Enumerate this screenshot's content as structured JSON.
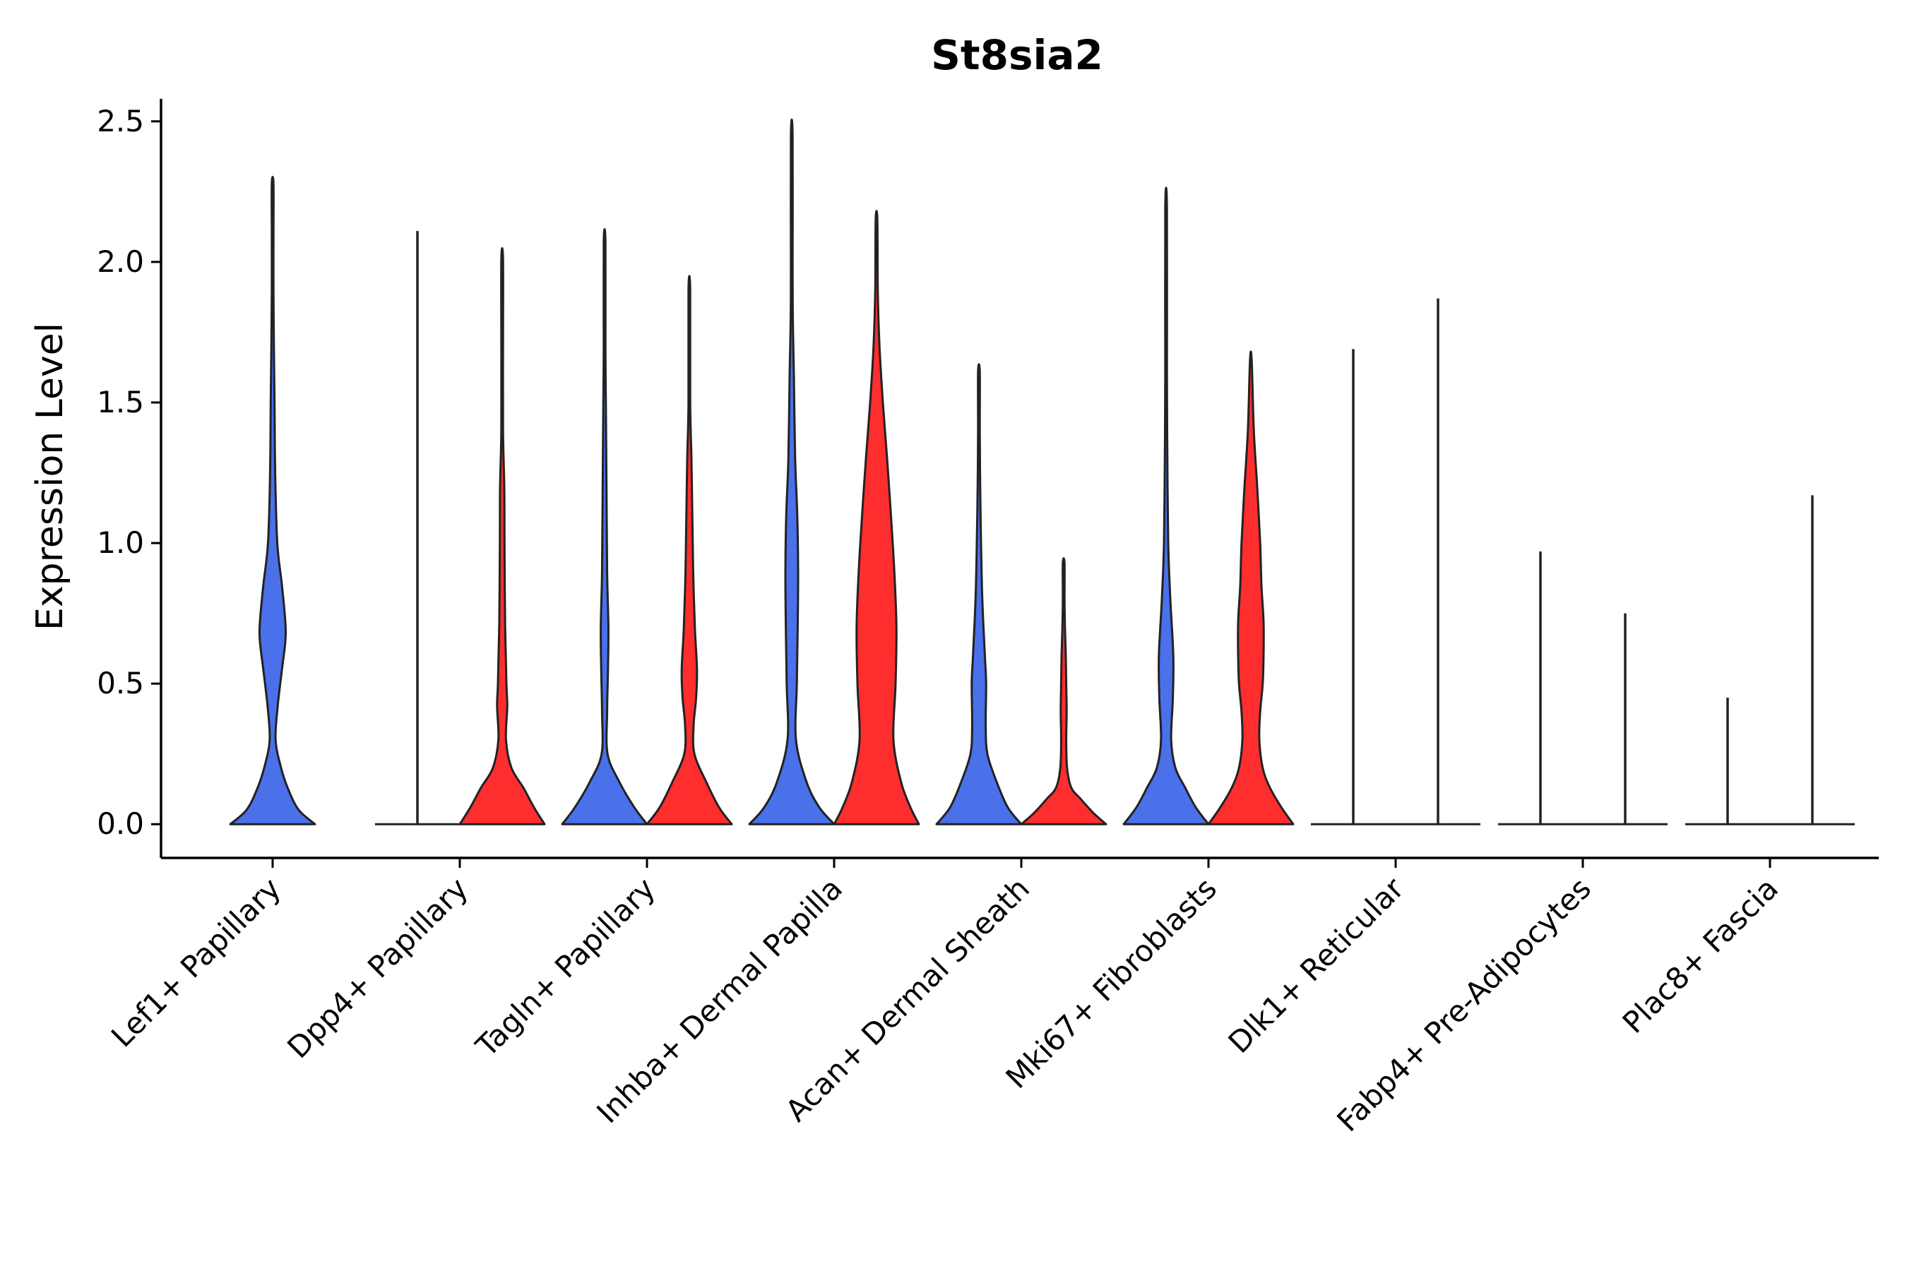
{
  "chart_data": {
    "type": "violin",
    "title": "St8sia2",
    "xlabel": "",
    "ylabel": "Expression Level",
    "ylim": [
      -0.12,
      2.58
    ],
    "yticks": [
      0.0,
      0.5,
      1.0,
      1.5,
      2.0,
      2.5
    ],
    "ytick_labels": [
      "0.0",
      "0.5",
      "1.0",
      "1.5",
      "2.0",
      "2.5"
    ],
    "grid": false,
    "legend": "none",
    "colors": {
      "blue": "#4A70EA",
      "red": "#FF2E2E",
      "outline": "#222222"
    },
    "categories": [
      "Lef1+ Papillary",
      "Dpp4+ Papillary",
      "Tagln+ Papillary",
      "Inhba+ Dermal Papilla",
      "Acan+ Dermal Sheath",
      "Mki67+ Fibroblasts",
      "Dlk1+ Reticular",
      "Fabp4+ Pre-Adipocytes",
      "Plac8+ Fascia"
    ],
    "series": [
      {
        "name": "blue",
        "color": "#4A70EA",
        "violins": [
          {
            "category": "Lef1+ Papillary",
            "max": 2.28,
            "profile": [
              [
                0,
                1.0
              ],
              [
                0.05,
                0.62
              ],
              [
                0.12,
                0.38
              ],
              [
                0.2,
                0.2
              ],
              [
                0.3,
                0.07
              ],
              [
                0.42,
                0.12
              ],
              [
                0.55,
                0.22
              ],
              [
                0.65,
                0.3
              ],
              [
                0.72,
                0.3
              ],
              [
                0.85,
                0.22
              ],
              [
                1.0,
                0.11
              ],
              [
                1.25,
                0.06
              ],
              [
                1.5,
                0.045
              ],
              [
                1.7,
                0.03
              ],
              [
                1.9,
                0.015
              ],
              [
                2.1,
                0.008
              ],
              [
                2.28,
                0.002
              ]
            ]
          },
          {
            "category": "Dpp4+ Papillary",
            "max": 2.11,
            "profile": [
              [
                0,
                0.003
              ],
              [
                2.11,
                0.003
              ]
            ]
          },
          {
            "category": "Tagln+ Papillary",
            "max": 2.07,
            "profile": [
              [
                0,
                1.0
              ],
              [
                0.06,
                0.7
              ],
              [
                0.15,
                0.35
              ],
              [
                0.25,
                0.07
              ],
              [
                0.4,
                0.06
              ],
              [
                0.55,
                0.08
              ],
              [
                0.7,
                0.09
              ],
              [
                0.9,
                0.06
              ],
              [
                1.2,
                0.045
              ],
              [
                1.5,
                0.03
              ],
              [
                1.7,
                0.015
              ],
              [
                2.07,
                0.003
              ]
            ]
          },
          {
            "category": "Inhba+ Dermal Papilla",
            "max": 2.45,
            "profile": [
              [
                0,
                1.0
              ],
              [
                0.06,
                0.65
              ],
              [
                0.15,
                0.35
              ],
              [
                0.3,
                0.1
              ],
              [
                0.5,
                0.12
              ],
              [
                0.7,
                0.14
              ],
              [
                0.9,
                0.15
              ],
              [
                1.1,
                0.13
              ],
              [
                1.3,
                0.08
              ],
              [
                1.6,
                0.05
              ],
              [
                1.8,
                0.025
              ],
              [
                2.0,
                0.012
              ],
              [
                2.45,
                0.002
              ]
            ]
          },
          {
            "category": "Acan+ Dermal Sheath",
            "max": 1.61,
            "profile": [
              [
                0,
                1.0
              ],
              [
                0.06,
                0.68
              ],
              [
                0.15,
                0.42
              ],
              [
                0.25,
                0.2
              ],
              [
                0.35,
                0.16
              ],
              [
                0.5,
                0.17
              ],
              [
                0.6,
                0.14
              ],
              [
                0.8,
                0.08
              ],
              [
                1.0,
                0.05
              ],
              [
                1.2,
                0.03
              ],
              [
                1.4,
                0.012
              ],
              [
                1.61,
                0.002
              ]
            ]
          },
          {
            "category": "Mki67+ Fibroblasts",
            "max": 2.19,
            "profile": [
              [
                0,
                1.0
              ],
              [
                0.06,
                0.7
              ],
              [
                0.13,
                0.45
              ],
              [
                0.2,
                0.22
              ],
              [
                0.3,
                0.12
              ],
              [
                0.45,
                0.16
              ],
              [
                0.6,
                0.17
              ],
              [
                0.8,
                0.1
              ],
              [
                1.0,
                0.05
              ],
              [
                1.3,
                0.03
              ],
              [
                1.6,
                0.015
              ],
              [
                2.19,
                0.002
              ]
            ]
          },
          {
            "category": "Dlk1+ Reticular",
            "max": 1.69,
            "profile": [
              [
                0,
                0.003
              ],
              [
                1.69,
                0.003
              ]
            ]
          },
          {
            "category": "Fabp4+ Pre-Adipocytes",
            "max": 0.97,
            "profile": [
              [
                0,
                0.003
              ],
              [
                0.97,
                0.003
              ]
            ]
          },
          {
            "category": "Plac8+ Fascia",
            "max": 0.45,
            "profile": [
              [
                0,
                0.003
              ],
              [
                0.45,
                0.003
              ]
            ]
          }
        ]
      },
      {
        "name": "red",
        "color": "#FF2E2E",
        "violins": [
          {
            "category": "Lef1+ Papillary",
            "max": null,
            "profile": []
          },
          {
            "category": "Dpp4+ Papillary",
            "max": 2.01,
            "profile": [
              [
                0,
                1.0
              ],
              [
                0.06,
                0.75
              ],
              [
                0.13,
                0.5
              ],
              [
                0.2,
                0.22
              ],
              [
                0.3,
                0.09
              ],
              [
                0.42,
                0.12
              ],
              [
                0.5,
                0.1
              ],
              [
                0.7,
                0.07
              ],
              [
                1.0,
                0.055
              ],
              [
                1.2,
                0.05
              ],
              [
                1.4,
                0.02
              ],
              [
                1.7,
                0.008
              ],
              [
                2.01,
                0.002
              ]
            ]
          },
          {
            "category": "Tagln+ Papillary",
            "max": 1.9,
            "profile": [
              [
                0,
                1.0
              ],
              [
                0.06,
                0.7
              ],
              [
                0.15,
                0.4
              ],
              [
                0.25,
                0.12
              ],
              [
                0.35,
                0.1
              ],
              [
                0.45,
                0.16
              ],
              [
                0.55,
                0.18
              ],
              [
                0.7,
                0.13
              ],
              [
                0.9,
                0.09
              ],
              [
                1.1,
                0.07
              ],
              [
                1.3,
                0.05
              ],
              [
                1.5,
                0.02
              ],
              [
                1.9,
                0.003
              ]
            ]
          },
          {
            "category": "Inhba+ Dermal Papilla",
            "max": 2.15,
            "profile": [
              [
                0,
                1.0
              ],
              [
                0.06,
                0.8
              ],
              [
                0.15,
                0.58
              ],
              [
                0.3,
                0.4
              ],
              [
                0.5,
                0.45
              ],
              [
                0.7,
                0.47
              ],
              [
                0.9,
                0.42
              ],
              [
                1.1,
                0.34
              ],
              [
                1.3,
                0.25
              ],
              [
                1.5,
                0.15
              ],
              [
                1.7,
                0.07
              ],
              [
                1.9,
                0.03
              ],
              [
                2.15,
                0.003
              ]
            ]
          },
          {
            "category": "Acan+ Dermal Sheath",
            "max": 0.93,
            "profile": [
              [
                0,
                1.0
              ],
              [
                0.04,
                0.7
              ],
              [
                0.09,
                0.4
              ],
              [
                0.13,
                0.18
              ],
              [
                0.2,
                0.08
              ],
              [
                0.3,
                0.06
              ],
              [
                0.4,
                0.07
              ],
              [
                0.5,
                0.06
              ],
              [
                0.6,
                0.05
              ],
              [
                0.7,
                0.03
              ],
              [
                0.8,
                0.01
              ],
              [
                0.93,
                0.003
              ]
            ]
          },
          {
            "category": "Mki67+ Fibroblasts",
            "max": 1.65,
            "profile": [
              [
                0,
                1.0
              ],
              [
                0.06,
                0.72
              ],
              [
                0.13,
                0.45
              ],
              [
                0.2,
                0.28
              ],
              [
                0.3,
                0.2
              ],
              [
                0.4,
                0.22
              ],
              [
                0.5,
                0.28
              ],
              [
                0.6,
                0.3
              ],
              [
                0.72,
                0.3
              ],
              [
                0.85,
                0.25
              ],
              [
                1.0,
                0.22
              ],
              [
                1.2,
                0.15
              ],
              [
                1.4,
                0.07
              ],
              [
                1.65,
                0.003
              ]
            ]
          },
          {
            "category": "Dlk1+ Reticular",
            "max": 1.87,
            "profile": [
              [
                0,
                0.003
              ],
              [
                1.87,
                0.003
              ]
            ]
          },
          {
            "category": "Fabp4+ Pre-Adipocytes",
            "max": 0.75,
            "profile": [
              [
                0,
                0.003
              ],
              [
                0.75,
                0.003
              ]
            ]
          },
          {
            "category": "Plac8+ Fascia",
            "max": 1.17,
            "profile": [
              [
                0,
                0.003
              ],
              [
                1.17,
                0.003
              ]
            ]
          }
        ]
      }
    ]
  }
}
